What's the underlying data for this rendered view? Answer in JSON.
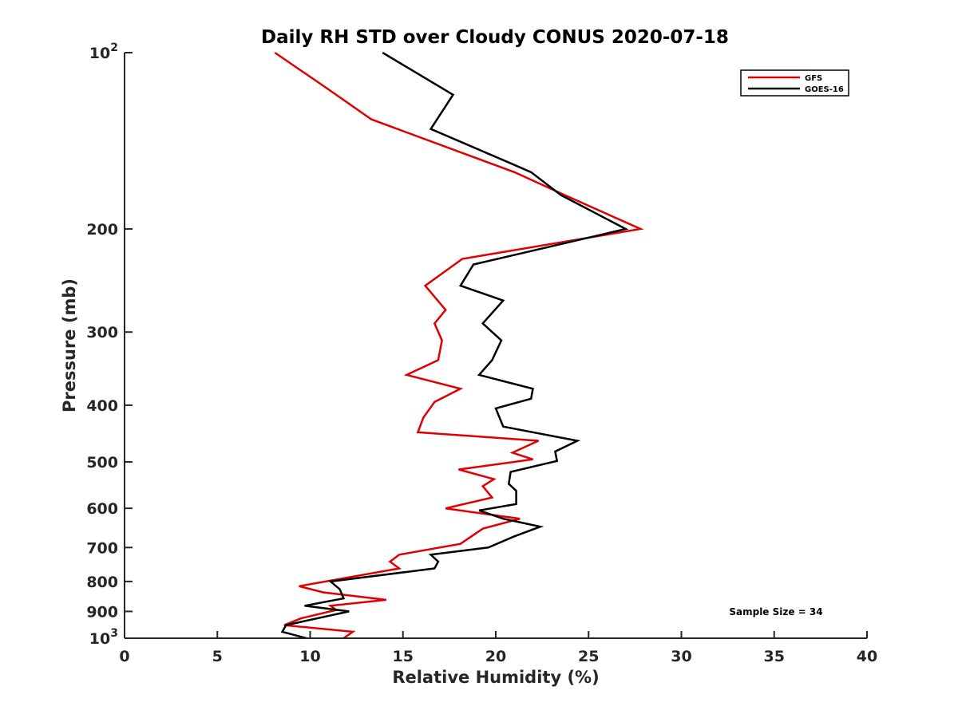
{
  "chart_data": {
    "type": "line",
    "title": "Daily RH STD over Cloudy CONUS 2020-07-18",
    "xlabel": "Relative Humidity (%)",
    "ylabel": "Pressure (mb)",
    "xlim": [
      0,
      40
    ],
    "ylim": [
      100,
      1000
    ],
    "y_scale": "log",
    "y_reversed": true,
    "x_ticks": [
      0,
      5,
      10,
      15,
      20,
      25,
      30,
      35,
      40
    ],
    "x_tick_labels": [
      "0",
      "5",
      "10",
      "15",
      "20",
      "25",
      "30",
      "35",
      "40"
    ],
    "y_ticks": [
      {
        "value": 100,
        "base": "10",
        "exp": "2"
      },
      {
        "value": 200,
        "label": "200"
      },
      {
        "value": 300,
        "label": "300"
      },
      {
        "value": 400,
        "label": "400"
      },
      {
        "value": 500,
        "label": "500"
      },
      {
        "value": 600,
        "label": "600"
      },
      {
        "value": 700,
        "label": "700"
      },
      {
        "value": 800,
        "label": "800"
      },
      {
        "value": 900,
        "label": "900"
      },
      {
        "value": 1000,
        "base": "10",
        "exp": "3"
      }
    ],
    "legend_position": "top-right",
    "annotation": "Sample Size = 34",
    "series": [
      {
        "name": "GFS",
        "color": "#e00000",
        "points": [
          [
            8.1,
            100
          ],
          [
            10.9,
            115
          ],
          [
            13.3,
            130
          ],
          [
            21.0,
            160
          ],
          [
            23.7,
            175
          ],
          [
            27.8,
            200
          ],
          [
            18.2,
            225
          ],
          [
            16.2,
            250
          ],
          [
            17.3,
            275
          ],
          [
            16.7,
            290
          ],
          [
            17.1,
            310
          ],
          [
            16.9,
            335
          ],
          [
            15.2,
            355
          ],
          [
            18.1,
            375
          ],
          [
            16.7,
            395
          ],
          [
            16.1,
            420
          ],
          [
            15.8,
            445
          ],
          [
            22.3,
            460
          ],
          [
            20.9,
            482
          ],
          [
            22.0,
            495
          ],
          [
            18.0,
            515
          ],
          [
            19.9,
            535
          ],
          [
            19.3,
            550
          ],
          [
            19.8,
            575
          ],
          [
            17.3,
            600
          ],
          [
            21.3,
            625
          ],
          [
            19.3,
            650
          ],
          [
            18.1,
            690
          ],
          [
            14.8,
            720
          ],
          [
            14.3,
            740
          ],
          [
            14.8,
            760
          ],
          [
            9.4,
            815
          ],
          [
            10.7,
            835
          ],
          [
            14.1,
            860
          ],
          [
            11.1,
            880
          ],
          [
            11.4,
            895
          ],
          [
            9.5,
            925
          ],
          [
            8.6,
            950
          ],
          [
            12.3,
            975
          ],
          [
            11.8,
            1000
          ]
        ]
      },
      {
        "name": "GOES-16",
        "color": "#000000",
        "points": [
          [
            13.9,
            100
          ],
          [
            17.7,
            118
          ],
          [
            16.5,
            135
          ],
          [
            20.9,
            155
          ],
          [
            21.9,
            160
          ],
          [
            23.5,
            175
          ],
          [
            27.0,
            200
          ],
          [
            18.8,
            230
          ],
          [
            18.1,
            250
          ],
          [
            20.4,
            265
          ],
          [
            19.3,
            290
          ],
          [
            20.3,
            310
          ],
          [
            19.8,
            335
          ],
          [
            19.1,
            355
          ],
          [
            22.0,
            375
          ],
          [
            21.9,
            390
          ],
          [
            20.0,
            405
          ],
          [
            20.4,
            435
          ],
          [
            24.4,
            460
          ],
          [
            23.2,
            480
          ],
          [
            23.3,
            498
          ],
          [
            20.8,
            520
          ],
          [
            20.7,
            545
          ],
          [
            21.1,
            560
          ],
          [
            21.1,
            590
          ],
          [
            19.1,
            605
          ],
          [
            20.4,
            625
          ],
          [
            22.4,
            645
          ],
          [
            21.0,
            670
          ],
          [
            19.6,
            700
          ],
          [
            16.5,
            720
          ],
          [
            16.9,
            740
          ],
          [
            16.7,
            760
          ],
          [
            11.1,
            800
          ],
          [
            11.6,
            825
          ],
          [
            11.8,
            855
          ],
          [
            9.7,
            880
          ],
          [
            12.1,
            900
          ],
          [
            8.7,
            950
          ],
          [
            8.5,
            975
          ],
          [
            9.8,
            1000
          ]
        ]
      }
    ]
  }
}
